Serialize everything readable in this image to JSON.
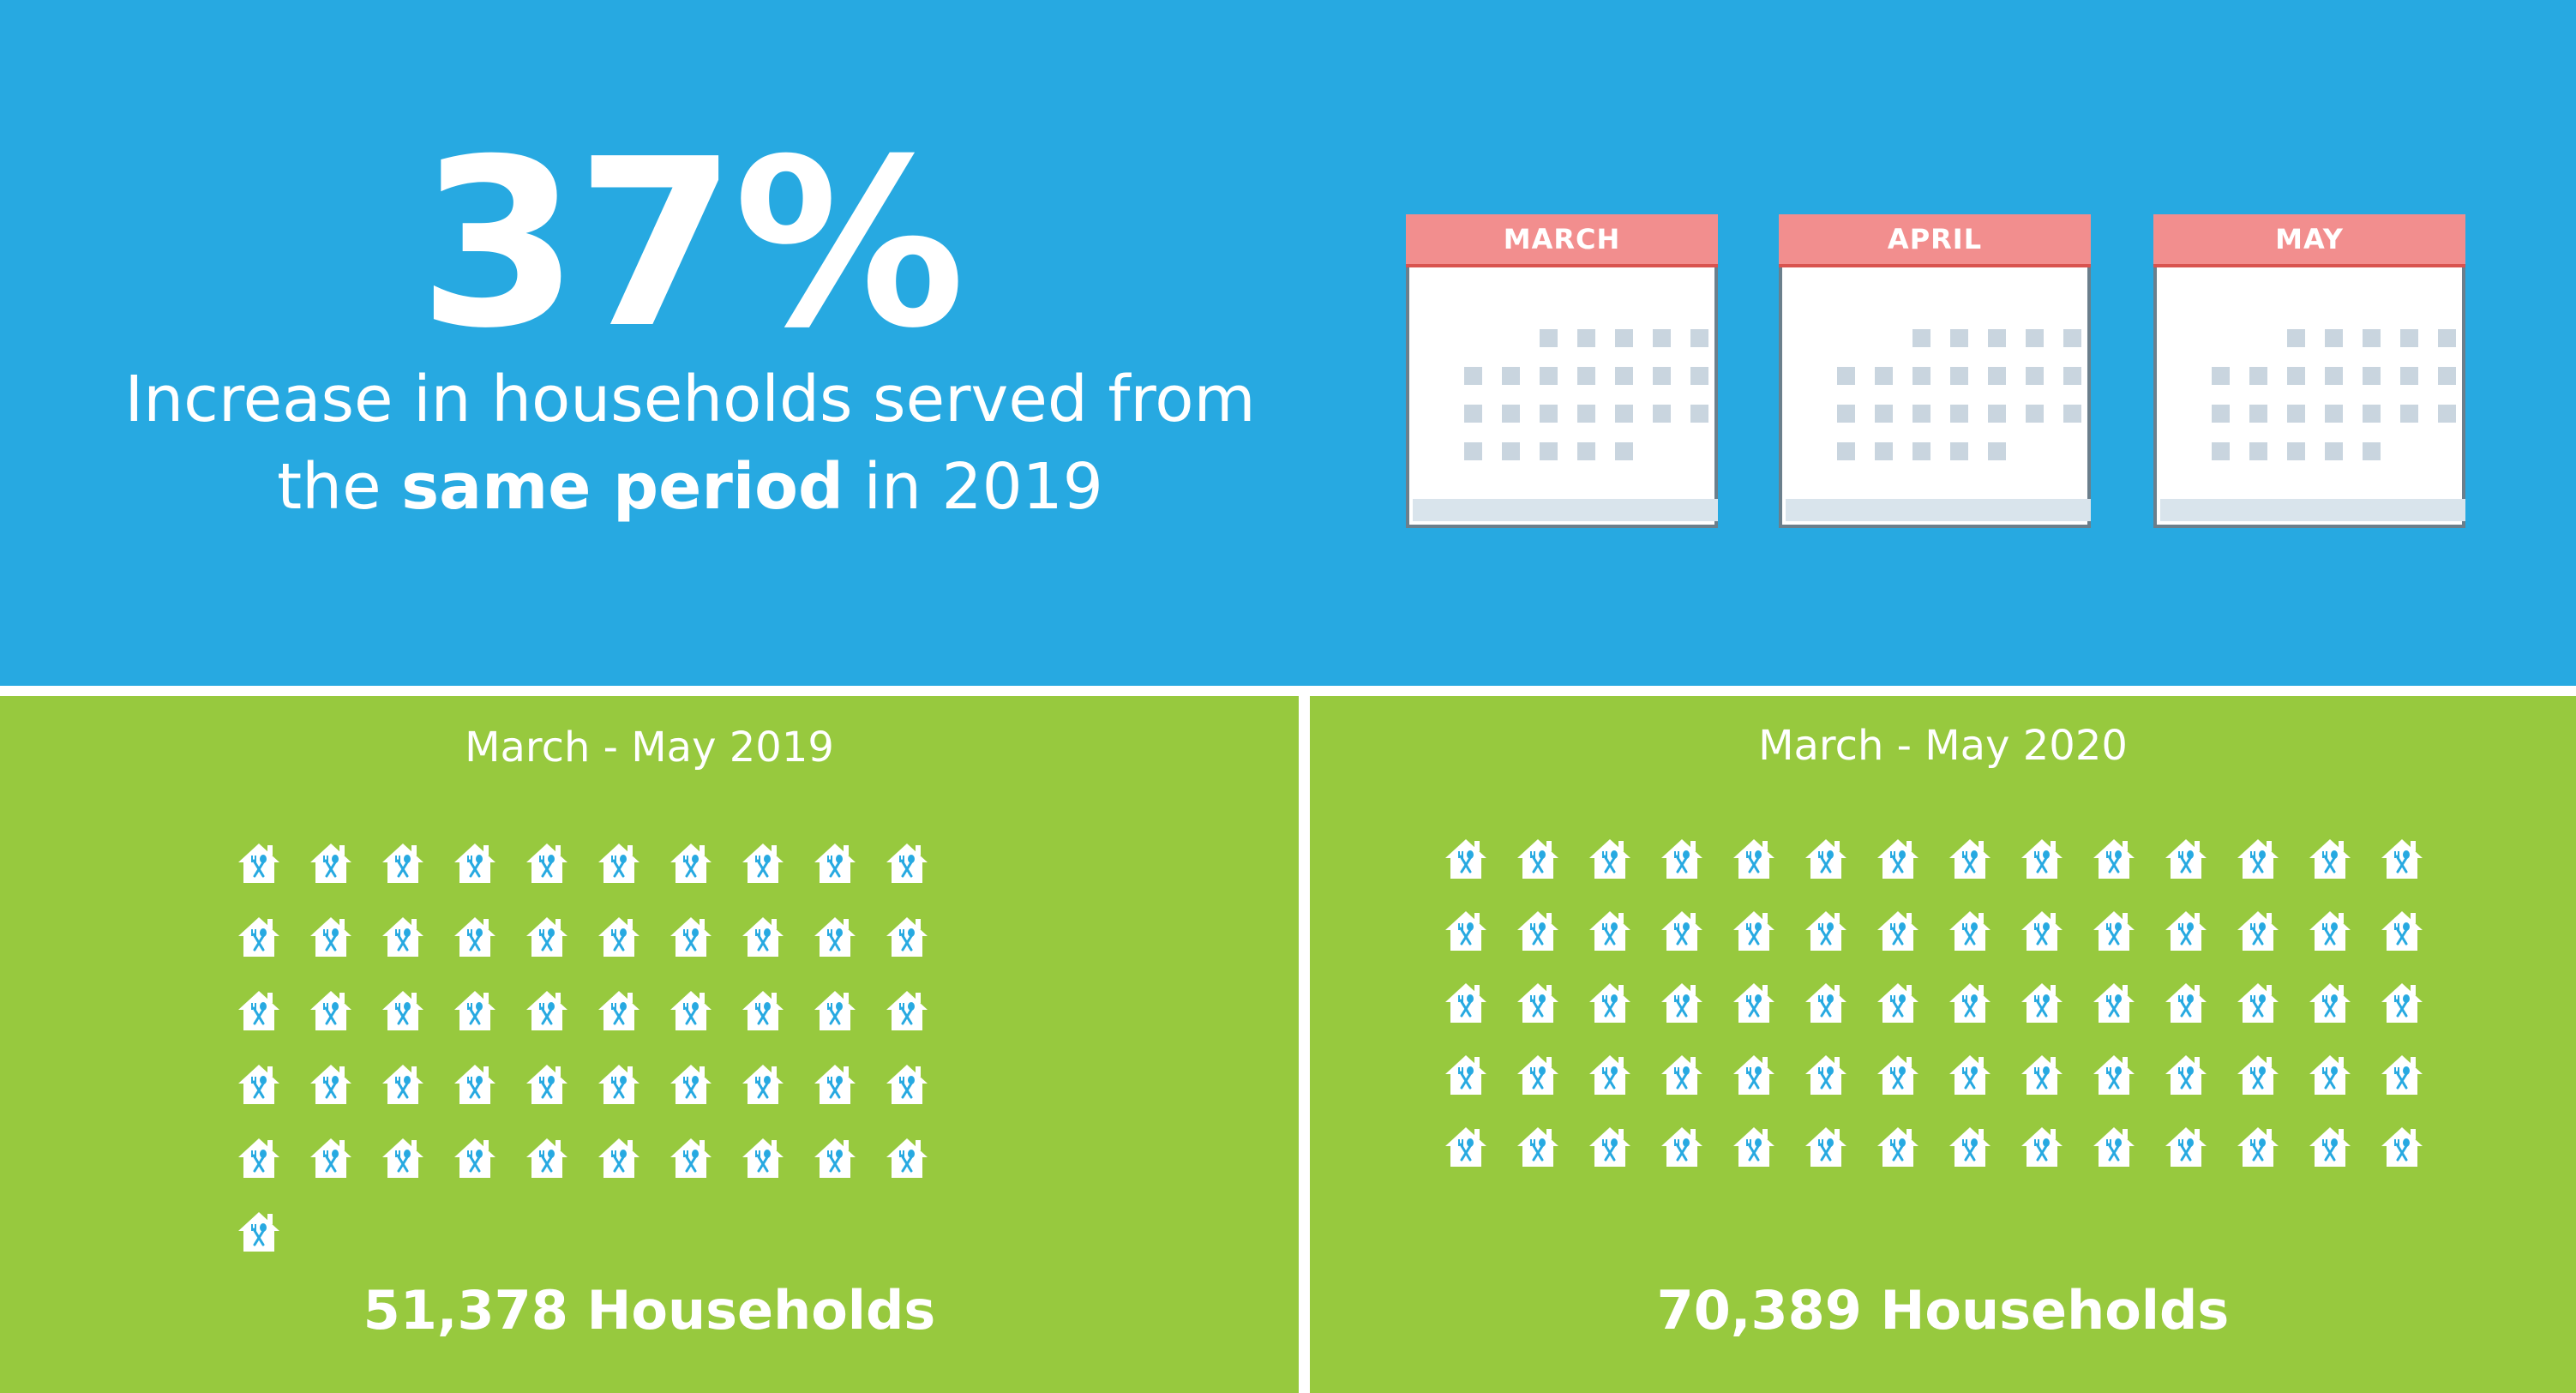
{
  "colors": {
    "blue": "#27a9e1",
    "green": "#97c93e",
    "calendar_header": "#f28e8e",
    "calendar_border": "#6b7f8c",
    "calendar_cells": "#c9d5df",
    "calendar_footer": "#d9e4ec",
    "white": "#ffffff",
    "house_icon_accent": "#27a9e1"
  },
  "headline": {
    "percent": "37%",
    "line1": "Increase in households served from",
    "line2_before": "the ",
    "line2_bold": "same period",
    "line2_after": " in 2019"
  },
  "calendars": [
    {
      "month": "MARCH",
      "highlighted_days": 0
    },
    {
      "month": "APRIL",
      "highlighted_days": 0
    },
    {
      "month": "MAY",
      "highlighted_days": 0
    }
  ],
  "panels": {
    "left": {
      "period": "March - May 2019",
      "total": "51,378 Households",
      "icon": "house-food-icon",
      "icon_count": 51
    },
    "right": {
      "period": "March - May 2020",
      "total": "70,389 Households",
      "icon": "house-food-icon",
      "icon_count": 70
    }
  }
}
